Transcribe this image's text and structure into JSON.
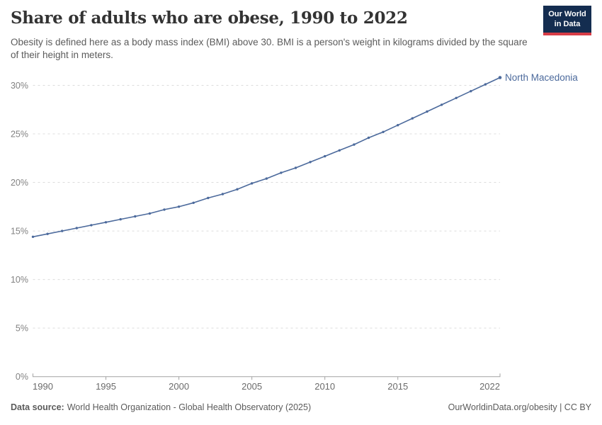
{
  "logo": {
    "line1": "Our World",
    "line2": "in Data"
  },
  "footer": {
    "datasource_label": "Data source:",
    "datasource_text": "World Health Organization - Global Health Observatory (2025)",
    "rights": "OurWorldinData.org/obesity | CC BY"
  },
  "chart_data": {
    "type": "line",
    "title": "Share of adults who are obese, 1990 to 2022",
    "subtitle": "Obesity is defined here as a body mass index (BMI) above 30. BMI is a person's weight in kilograms divided by the square of their height in meters.",
    "xlabel": "",
    "ylabel": "",
    "xlim": [
      1990,
      2022
    ],
    "ylim": [
      0,
      31.5
    ],
    "grid": "horizontal-dashed",
    "legend_position": "end-of-line-label",
    "x": [
      1990,
      1991,
      1992,
      1993,
      1994,
      1995,
      1996,
      1997,
      1998,
      1999,
      2000,
      2001,
      2002,
      2003,
      2004,
      2005,
      2006,
      2007,
      2008,
      2009,
      2010,
      2011,
      2012,
      2013,
      2014,
      2015,
      2016,
      2017,
      2018,
      2019,
      2020,
      2021,
      2022
    ],
    "series": [
      {
        "name": "North Macedonia",
        "color": "#4C6A9C",
        "values": [
          14.4,
          14.7,
          15.0,
          15.3,
          15.6,
          15.9,
          16.2,
          16.5,
          16.8,
          17.2,
          17.5,
          17.9,
          18.4,
          18.8,
          19.3,
          19.9,
          20.4,
          21.0,
          21.5,
          22.1,
          22.7,
          23.3,
          23.9,
          24.6,
          25.2,
          25.9,
          26.6,
          27.3,
          28.0,
          28.7,
          29.4,
          30.1,
          30.8
        ]
      }
    ],
    "y_tick_values": [
      0,
      5,
      10,
      15,
      20,
      25,
      30
    ],
    "y_tick_labels": [
      "0%",
      "5%",
      "10%",
      "15%",
      "20%",
      "25%",
      "30%"
    ],
    "x_tick_values": [
      1990,
      1995,
      2000,
      2005,
      2010,
      2015,
      2022
    ],
    "x_tick_labels": [
      "1990",
      "1995",
      "2000",
      "2005",
      "2010",
      "2015",
      "2022"
    ],
    "axis_color": "#a3a3a3",
    "gridline_color": "#dcdcdc",
    "y_label_color": "#828282",
    "x_label_color": "#6b6b6b"
  }
}
